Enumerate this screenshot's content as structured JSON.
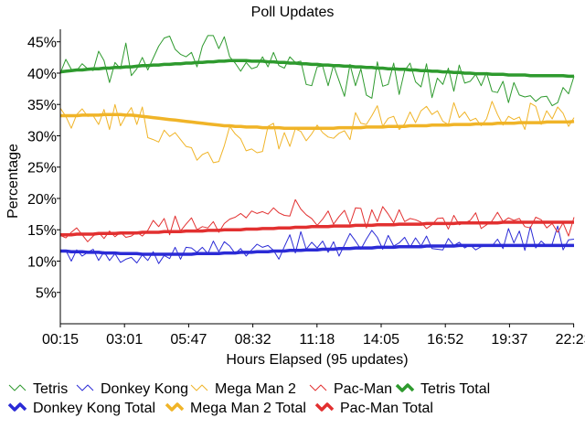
{
  "chart_data": {
    "type": "line",
    "title": "Poll Updates",
    "xlabel": "Hours Elapsed (95 updates)",
    "ylabel": "Percentage",
    "x_tick_labels": [
      "00:15",
      "03:01",
      "05:47",
      "08:32",
      "11:18",
      "14:05",
      "16:52",
      "19:37",
      "22:23"
    ],
    "y_tick_labels": [
      "5%",
      "10%",
      "15%",
      "20%",
      "25%",
      "30%",
      "35%",
      "40%",
      "45%"
    ],
    "y_ticks": [
      5,
      10,
      15,
      20,
      25,
      30,
      35,
      40,
      45
    ],
    "ylim": [
      0,
      47
    ],
    "x_count": 95,
    "grid": false,
    "legend_position": "bottom",
    "series": [
      {
        "name": "Tetris",
        "style": "thin",
        "color": "#2e9a2e",
        "values": [
          40.0,
          42.2,
          40.6,
          40.4,
          41.5,
          40.7,
          40.4,
          43.5,
          42.0,
          38.5,
          41.7,
          40.7,
          44.8,
          39.6,
          40.7,
          42.5,
          40.5,
          42.4,
          44.3,
          45.6,
          45.9,
          43.8,
          43.0,
          42.6,
          43.3,
          41.0,
          44.3,
          46.0,
          46.0,
          43.9,
          45.8,
          42.6,
          41.6,
          40.3,
          41.7,
          40.7,
          41.0,
          42.6,
          41.0,
          43.3,
          41.2,
          40.8,
          42.6,
          41.7,
          41.9,
          38.2,
          38.0,
          41.0,
          41.1,
          38.0,
          41.3,
          38.8,
          36.3,
          41.4,
          38.0,
          40.7,
          36.5,
          36.0,
          41.8,
          37.9,
          38.2,
          41.6,
          36.6,
          40.4,
          41.6,
          38.6,
          37.8,
          41.5,
          36.1,
          39.2,
          38.2,
          40.8,
          37.1,
          41.3,
          38.4,
          38.7,
          39.8,
          38.0,
          40.1,
          37.1,
          36.9,
          38.7,
          35.3,
          38.5,
          36.5,
          36.2,
          36.4,
          35.5,
          36.2,
          36.3,
          34.8,
          35.3,
          37.7,
          36.7,
          39.5
        ]
      },
      {
        "name": "Donkey Kong",
        "style": "thin",
        "color": "#2b2bd6",
        "values": [
          11.5,
          11.7,
          10.0,
          11.8,
          10.8,
          11.4,
          11.9,
          10.1,
          11.5,
          10.1,
          11.2,
          9.8,
          10.3,
          10.6,
          9.7,
          11.0,
          10.1,
          11.5,
          9.6,
          10.9,
          10.4,
          12.2,
          10.3,
          12.2,
          12.1,
          11.4,
          12.2,
          11.2,
          13.2,
          11.5,
          13.1,
          12.4,
          11.2,
          12.0,
          10.8,
          11.8,
          12.7,
          12.2,
          12.5,
          11.7,
          10.3,
          12.3,
          14.2,
          11.3,
          14.7,
          11.9,
          13.0,
          12.1,
          13.2,
          11.4,
          13.1,
          10.8,
          12.6,
          14.4,
          13.2,
          11.9,
          13.5,
          14.9,
          13.8,
          11.9,
          14.1,
          12.4,
          12.9,
          13.8,
          12.2,
          13.7,
          12.4,
          14.0,
          12.0,
          11.9,
          11.8,
          13.6,
          12.5,
          13.0,
          12.1,
          12.6,
          11.8,
          12.3,
          12.4,
          12.4,
          13.5,
          12.0,
          15.2,
          12.9,
          14.8,
          11.7,
          15.5,
          12.1,
          13.2,
          12.4,
          12.7,
          15.6,
          11.8,
          13.4,
          13.5
        ]
      },
      {
        "name": "Mega Man 2",
        "style": "thin",
        "color": "#f0b428",
        "values": [
          34.4,
          33.1,
          31.2,
          33.4,
          34.3,
          33.1,
          33.2,
          31.8,
          34.2,
          31.0,
          35.0,
          31.6,
          33.2,
          34.5,
          31.8,
          34.6,
          29.7,
          29.4,
          29.0,
          30.9,
          29.9,
          30.5,
          29.4,
          28.3,
          28.1,
          26.1,
          27.0,
          27.4,
          25.7,
          25.9,
          28.4,
          31.5,
          30.3,
          29.5,
          27.6,
          27.9,
          27.3,
          27.5,
          31.5,
          32.0,
          27.9,
          30.5,
          28.3,
          31.1,
          30.7,
          29.2,
          30.3,
          31.7,
          30.5,
          29.8,
          29.6,
          30.4,
          30.8,
          29.4,
          33.7,
          32.0,
          31.8,
          33.2,
          34.8,
          31.5,
          32.8,
          33.1,
          31.0,
          31.9,
          33.8,
          32.1,
          34.0,
          34.7,
          33.4,
          34.0,
          32.3,
          31.8,
          35.3,
          32.9,
          33.8,
          32.4,
          32.8,
          31.6,
          32.7,
          35.5,
          33.4,
          31.7,
          33.1,
          32.6,
          33.0,
          31.0,
          35.2,
          34.7,
          31.8,
          34.0,
          32.7,
          34.6,
          33.6,
          31.5,
          32.9
        ]
      },
      {
        "name": "Pac-Man",
        "style": "thin",
        "color": "#e23030",
        "values": [
          14.1,
          13.7,
          14.6,
          15.3,
          14.2,
          13.1,
          14.0,
          14.6,
          13.6,
          14.8,
          13.9,
          14.6,
          13.8,
          14.0,
          14.6,
          14.0,
          14.9,
          16.5,
          15.5,
          16.8,
          14.2,
          17.2,
          14.8,
          15.9,
          16.9,
          15.0,
          15.5,
          15.3,
          16.3,
          14.6,
          16.0,
          16.7,
          17.0,
          17.6,
          16.9,
          18.0,
          17.6,
          17.9,
          17.5,
          18.5,
          17.7,
          17.3,
          17.2,
          19.8,
          18.3,
          17.4,
          16.8,
          15.7,
          16.7,
          18.0,
          15.9,
          17.1,
          18.1,
          15.9,
          18.5,
          18.4,
          15.3,
          18.2,
          16.3,
          18.7,
          17.5,
          16.1,
          18.2,
          16.3,
          16.8,
          16.6,
          16.2,
          15.2,
          15.8,
          16.8,
          16.9,
          15.1,
          17.3,
          15.8,
          16.1,
          16.5,
          17.7,
          15.2,
          15.8,
          16.4,
          17.8,
          16.3,
          16.9,
          16.5,
          16.8,
          15.5,
          15.3,
          17.0,
          16.6,
          15.3,
          16.0,
          14.6,
          16.1,
          14.0,
          17.0
        ]
      },
      {
        "name": "Tetris Total",
        "style": "thick",
        "color": "#2e9a2e",
        "values": [
          40.2,
          40.3,
          40.4,
          40.5,
          40.5,
          40.6,
          40.7,
          40.7,
          40.8,
          40.8,
          40.9,
          40.9,
          41.0,
          41.0,
          41.1,
          41.2,
          41.2,
          41.3,
          41.3,
          41.4,
          41.4,
          41.5,
          41.5,
          41.6,
          41.6,
          41.7,
          41.7,
          41.8,
          41.8,
          41.9,
          41.9,
          42.0,
          42.0,
          42.0,
          42.0,
          41.9,
          41.9,
          41.9,
          41.8,
          41.8,
          41.7,
          41.7,
          41.6,
          41.6,
          41.5,
          41.5,
          41.4,
          41.4,
          41.3,
          41.3,
          41.2,
          41.2,
          41.1,
          41.1,
          41.0,
          41.0,
          40.9,
          40.9,
          40.8,
          40.8,
          40.7,
          40.7,
          40.6,
          40.6,
          40.5,
          40.5,
          40.4,
          40.4,
          40.3,
          40.3,
          40.2,
          40.2,
          40.1,
          40.1,
          40.0,
          40.0,
          39.9,
          39.9,
          39.9,
          39.8,
          39.8,
          39.8,
          39.7,
          39.7,
          39.7,
          39.7,
          39.6,
          39.6,
          39.6,
          39.6,
          39.6,
          39.6,
          39.6,
          39.5,
          39.5
        ]
      },
      {
        "name": "Donkey Kong Total",
        "style": "thick",
        "color": "#2b2bd6",
        "values": [
          11.6,
          11.6,
          11.5,
          11.5,
          11.5,
          11.4,
          11.4,
          11.4,
          11.3,
          11.3,
          11.3,
          11.2,
          11.2,
          11.2,
          11.2,
          11.1,
          11.1,
          11.1,
          11.1,
          11.1,
          11.1,
          11.1,
          11.1,
          11.1,
          11.1,
          11.2,
          11.2,
          11.2,
          11.2,
          11.2,
          11.3,
          11.3,
          11.3,
          11.4,
          11.4,
          11.4,
          11.5,
          11.5,
          11.5,
          11.6,
          11.6,
          11.6,
          11.7,
          11.7,
          11.7,
          11.8,
          11.8,
          11.8,
          11.9,
          11.9,
          11.9,
          12.0,
          12.0,
          12.0,
          12.1,
          12.1,
          12.1,
          12.1,
          12.2,
          12.2,
          12.2,
          12.2,
          12.3,
          12.3,
          12.3,
          12.3,
          12.3,
          12.4,
          12.4,
          12.4,
          12.4,
          12.4,
          12.4,
          12.5,
          12.5,
          12.5,
          12.5,
          12.5,
          12.5,
          12.5,
          12.5,
          12.5,
          12.5,
          12.5,
          12.5,
          12.5,
          12.5,
          12.5,
          12.5,
          12.5,
          12.5,
          12.5,
          12.5,
          12.5,
          12.5
        ]
      },
      {
        "name": "Mega Man 2 Total",
        "style": "thick",
        "color": "#f0b428",
        "values": [
          33.2,
          33.2,
          33.2,
          33.2,
          33.3,
          33.3,
          33.3,
          33.3,
          33.4,
          33.4,
          33.4,
          33.4,
          33.3,
          33.3,
          33.2,
          33.1,
          33.0,
          32.9,
          32.8,
          32.7,
          32.6,
          32.5,
          32.4,
          32.3,
          32.2,
          32.1,
          32.0,
          31.9,
          31.8,
          31.7,
          31.6,
          31.6,
          31.5,
          31.5,
          31.4,
          31.4,
          31.4,
          31.3,
          31.3,
          31.3,
          31.3,
          31.2,
          31.2,
          31.2,
          31.2,
          31.2,
          31.2,
          31.2,
          31.2,
          31.2,
          31.2,
          31.3,
          31.3,
          31.3,
          31.3,
          31.3,
          31.4,
          31.4,
          31.4,
          31.4,
          31.5,
          31.5,
          31.5,
          31.5,
          31.6,
          31.6,
          31.6,
          31.6,
          31.7,
          31.7,
          31.7,
          31.7,
          31.8,
          31.8,
          31.8,
          31.8,
          31.9,
          31.9,
          31.9,
          31.9,
          32.0,
          32.0,
          32.0,
          32.0,
          32.1,
          32.1,
          32.1,
          32.1,
          32.1,
          32.2,
          32.2,
          32.2,
          32.2,
          32.2,
          32.3
        ]
      },
      {
        "name": "Pac-Man Total",
        "style": "thick",
        "color": "#e23030",
        "values": [
          14.2,
          14.2,
          14.2,
          14.3,
          14.3,
          14.3,
          14.3,
          14.4,
          14.4,
          14.4,
          14.4,
          14.5,
          14.5,
          14.5,
          14.5,
          14.6,
          14.6,
          14.6,
          14.6,
          14.7,
          14.7,
          14.7,
          14.7,
          14.8,
          14.8,
          14.8,
          14.8,
          14.9,
          14.9,
          14.9,
          15.0,
          15.0,
          15.0,
          15.0,
          15.1,
          15.1,
          15.1,
          15.2,
          15.2,
          15.2,
          15.3,
          15.3,
          15.3,
          15.4,
          15.4,
          15.4,
          15.5,
          15.5,
          15.5,
          15.5,
          15.6,
          15.6,
          15.6,
          15.6,
          15.7,
          15.7,
          15.7,
          15.7,
          15.8,
          15.8,
          15.8,
          15.8,
          15.9,
          15.9,
          15.9,
          15.9,
          15.9,
          16.0,
          16.0,
          16.0,
          16.0,
          16.0,
          16.0,
          16.1,
          16.1,
          16.1,
          16.1,
          16.1,
          16.1,
          16.1,
          16.1,
          16.2,
          16.2,
          16.2,
          16.2,
          16.2,
          16.2,
          16.2,
          16.2,
          16.2,
          16.2,
          16.2,
          16.2,
          16.2,
          16.2
        ]
      }
    ]
  }
}
